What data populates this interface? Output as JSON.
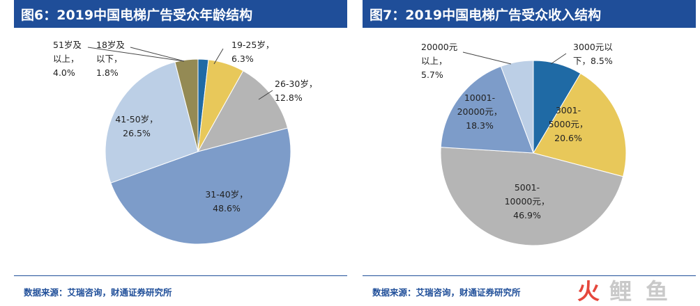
{
  "charts": [
    {
      "title": "图6：2019中国电梯广告受众年龄结构",
      "source": "数据来源：艾瑞咨询，财通证券研究所"
    },
    {
      "title": "图7：2019中国电梯广告受众收入结构",
      "source": "数据来源：艾瑞咨询，财通证券研究所"
    }
  ],
  "chart_data": [
    {
      "type": "pie",
      "title": "图6：2019中国电梯广告受众年龄结构",
      "start": "12 o'clock, clockwise",
      "slices": [
        {
          "label": "18岁及以下",
          "value": 1.8,
          "display": [
            "18岁及",
            "以下，",
            "1.8%"
          ],
          "color": "#1f6aa5"
        },
        {
          "label": "19-25岁",
          "value": 6.3,
          "display": [
            "19-25岁，",
            "6.3%"
          ],
          "color": "#e8c85a"
        },
        {
          "label": "26-30岁",
          "value": 12.8,
          "display": [
            "26-30岁，",
            "12.8%"
          ],
          "color": "#b5b5b5"
        },
        {
          "label": "31-40岁",
          "value": 48.6,
          "display": [
            "31-40岁，",
            "48.6%"
          ],
          "color": "#7d9cc9"
        },
        {
          "label": "41-50岁",
          "value": 26.5,
          "display": [
            "41-50岁，",
            "26.5%"
          ],
          "color": "#bccfe6"
        },
        {
          "label": "51岁及以上",
          "value": 4.0,
          "display": [
            "51岁及",
            "以上，",
            "4.0%"
          ],
          "color": "#948a54"
        }
      ]
    },
    {
      "type": "pie",
      "title": "图7：2019中国电梯广告受众收入结构",
      "start": "12 o'clock, clockwise",
      "slices": [
        {
          "label": "3000元以下",
          "value": 8.5,
          "display": [
            "3000元以",
            "下，8.5%"
          ],
          "color": "#1f6aa5"
        },
        {
          "label": "3001-5000元",
          "value": 20.6,
          "display": [
            "3001-",
            "5000元，",
            "20.6%"
          ],
          "color": "#e8c85a"
        },
        {
          "label": "5001-10000元",
          "value": 46.9,
          "display": [
            "5001-",
            "10000元，",
            "46.9%"
          ],
          "color": "#b5b5b5"
        },
        {
          "label": "10001-20000元",
          "value": 18.3,
          "display": [
            "10001-",
            "20000元，",
            "18.3%"
          ],
          "color": "#7d9cc9"
        },
        {
          "label": "20000元以上",
          "value": 5.7,
          "display": [
            "20000元",
            "以上，",
            "5.7%"
          ],
          "color": "#bccfe6"
        }
      ]
    }
  ],
  "watermark": {
    "chars": [
      "火",
      "鲤",
      "鱼"
    ],
    "colors": [
      "#e5473c",
      "#c9c9c9",
      "#c9c9c9"
    ]
  }
}
